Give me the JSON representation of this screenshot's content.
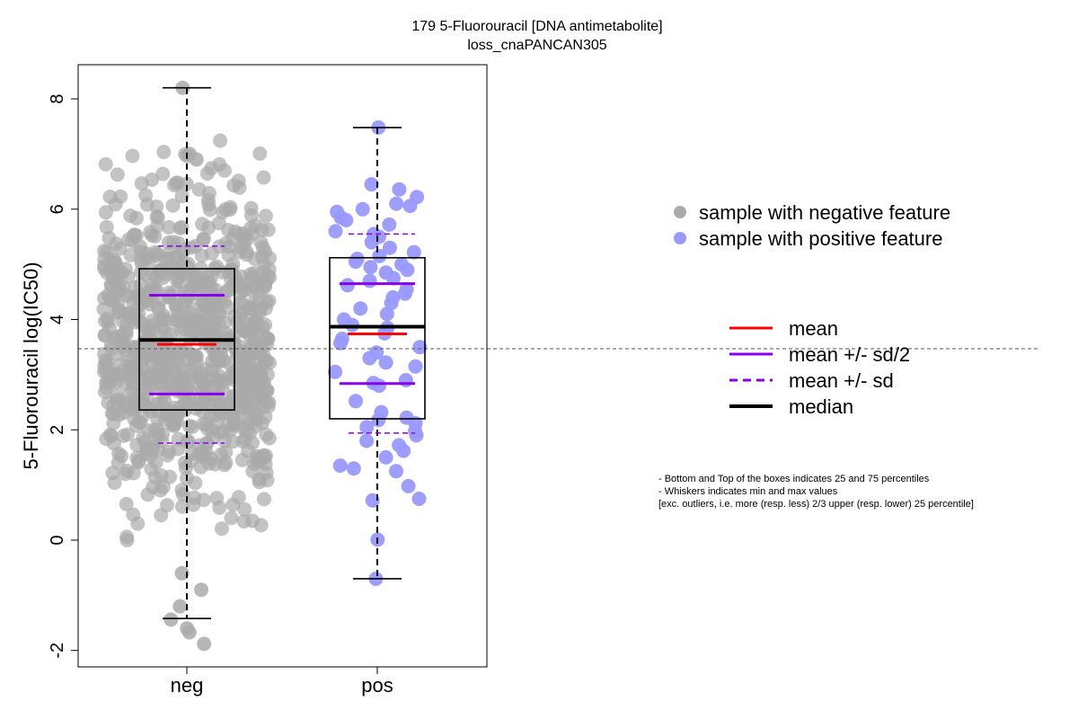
{
  "chart_data": {
    "type": "box",
    "title": "179 5-Fluorouracil [DNA antimetabolite]",
    "subtitle": "loss_cnaPANCAN305",
    "ylabel": "5-Fluorouracil log(IC50)",
    "xlabel": "",
    "categories": [
      "neg",
      "pos"
    ],
    "ylim": [
      -2.3,
      8.6
    ],
    "yticks": [
      -2,
      0,
      2,
      4,
      6,
      8
    ],
    "reference_line": 3.47,
    "groups": [
      {
        "name": "neg",
        "color": "#aaaaaa",
        "whisker_low": -1.42,
        "q1": 2.36,
        "median": 3.63,
        "q3": 4.92,
        "whisker_high": 8.2,
        "mean": 3.55,
        "mean_minus_half_sd": 2.65,
        "mean_plus_half_sd": 4.44,
        "mean_minus_sd": 1.76,
        "mean_plus_sd": 5.33,
        "outliers": [
          -1.6,
          -1.88,
          -1.67,
          -1.44
        ],
        "n_points": 900
      },
      {
        "name": "pos",
        "color": "#9999ff",
        "whisker_low": -0.7,
        "q1": 2.2,
        "median": 3.87,
        "q3": 5.12,
        "whisker_high": 7.48,
        "mean": 3.74,
        "mean_minus_half_sd": 2.84,
        "mean_plus_half_sd": 4.65,
        "mean_minus_sd": 1.94,
        "mean_plus_sd": 5.55,
        "points": [
          7.48,
          6.45,
          6.36,
          6.22,
          6.1,
          6.06,
          6.0,
          5.95,
          5.85,
          5.8,
          5.72,
          5.6,
          5.55,
          5.5,
          5.4,
          5.3,
          5.22,
          5.15,
          5.1,
          5.05,
          5.0,
          4.95,
          4.9,
          4.85,
          4.75,
          4.7,
          4.62,
          4.55,
          4.47,
          4.4,
          4.3,
          4.2,
          4.1,
          4.0,
          3.9,
          3.85,
          3.75,
          3.65,
          3.57,
          3.5,
          3.4,
          3.3,
          3.22,
          3.15,
          3.05,
          2.9,
          2.85,
          2.8,
          2.52,
          2.32,
          2.22,
          2.18,
          2.12,
          2.05,
          1.98,
          1.9,
          1.8,
          1.72,
          1.62,
          1.5,
          1.35,
          1.3,
          1.25,
          0.98,
          0.75,
          0.72,
          0.01,
          -0.7
        ]
      }
    ],
    "legend_points": [
      {
        "label": "sample with negative feature",
        "color": "#aaaaaa"
      },
      {
        "label": "sample with positive feature",
        "color": "#9999ff"
      }
    ],
    "legend_lines": [
      {
        "label": "mean",
        "color": "#ff0000",
        "style": "solid"
      },
      {
        "label": "mean +/- sd/2",
        "color": "#8800ee",
        "style": "solid"
      },
      {
        "label": "mean +/- sd",
        "color": "#8800ee",
        "style": "dashed"
      },
      {
        "label": "median",
        "color": "#000000",
        "style": "solid-thick"
      }
    ],
    "notes": [
      "- Bottom and Top of the boxes indicates 25 and 75 percentiles",
      "- Whiskers indicates min and max values",
      "[exc. outliers, i.e. more (resp. less) 2/3 upper (resp. lower) 25 percentile]"
    ]
  }
}
